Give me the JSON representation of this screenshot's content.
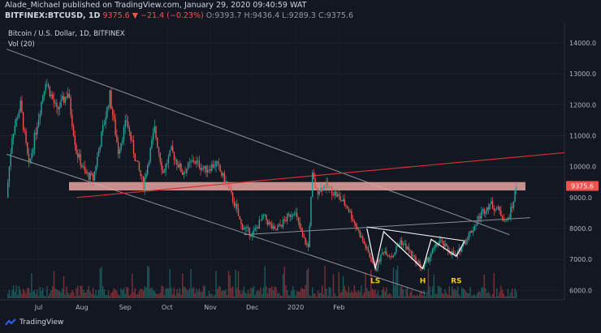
{
  "header": {
    "line1": "Alade_Michael published on TradingView.com, January 29, 2020 09:40:59 WAT",
    "symbol": "BITFINEX:BTCUSD, 1D",
    "change": "9375.6 ▼ −21.4 (−0.23%)",
    "ohlc_o": "O:9393.7",
    "ohlc_h": "H:9436.4",
    "ohlc_l": "L:9289.3",
    "ohlc_c": "C:9375.6"
  },
  "logo_text": "TradingView",
  "chart_data": {
    "type": "candlestick",
    "title": "Bitcoin / U.S. Dollar, 1D, BITFINEX",
    "volume_label": "Vol (20)",
    "ylim": [
      5800,
      14600
    ],
    "y_ticks": [
      6000,
      7000,
      8000,
      9000,
      10000,
      11000,
      12000,
      13000,
      14000
    ],
    "y_tick_labels": [
      "6000.0",
      "7000.0",
      "8000.0",
      "9000.0",
      "10000.0",
      "11000.0",
      "12000.0",
      "13000.0",
      "14000.0"
    ],
    "x_ticks": [
      "Jul",
      "Aug",
      "Sep",
      "Oct",
      "Nov",
      "Dec",
      "2020",
      "Feb"
    ],
    "last_price_label": "9375.6",
    "last_price": 9375.6,
    "colors": {
      "background": "#131722",
      "up": "#26a69a",
      "down": "#ef5350",
      "resistance_zone": "#e8a5a0",
      "red_trendline": "#d32f2f",
      "channel_lines": "#8a8e99",
      "pattern_lines": "#ffffff",
      "pattern_labels": "#f5c518"
    },
    "price_path": [
      [
        0,
        9000
      ],
      [
        4,
        11000
      ],
      [
        10,
        12000
      ],
      [
        16,
        10000
      ],
      [
        22,
        11400
      ],
      [
        28,
        12800
      ],
      [
        36,
        11800
      ],
      [
        44,
        12400
      ],
      [
        50,
        10500
      ],
      [
        56,
        9800
      ],
      [
        62,
        9600
      ],
      [
        68,
        11000
      ],
      [
        74,
        12300
      ],
      [
        80,
        10500
      ],
      [
        86,
        11500
      ],
      [
        92,
        10300
      ],
      [
        98,
        9400
      ],
      [
        106,
        11200
      ],
      [
        112,
        9800
      ],
      [
        118,
        10500
      ],
      [
        126,
        9800
      ],
      [
        134,
        10200
      ],
      [
        142,
        9900
      ],
      [
        150,
        10100
      ],
      [
        158,
        9400
      ],
      [
        164,
        8700
      ],
      [
        168,
        8100
      ],
      [
        176,
        7800
      ],
      [
        184,
        8400
      ],
      [
        192,
        7900
      ],
      [
        200,
        8300
      ],
      [
        206,
        8600
      ],
      [
        212,
        7700
      ],
      [
        216,
        7400
      ],
      [
        219,
        9700
      ],
      [
        222,
        9200
      ],
      [
        228,
        9400
      ],
      [
        236,
        9100
      ],
      [
        244,
        8700
      ],
      [
        250,
        8100
      ],
      [
        258,
        7300
      ],
      [
        264,
        6700
      ],
      [
        270,
        7300
      ],
      [
        276,
        7100
      ],
      [
        282,
        7600
      ],
      [
        288,
        7300
      ],
      [
        292,
        7000
      ],
      [
        298,
        6700
      ],
      [
        304,
        7200
      ],
      [
        310,
        7600
      ],
      [
        316,
        7300
      ],
      [
        322,
        7100
      ],
      [
        328,
        7600
      ],
      [
        334,
        8000
      ],
      [
        340,
        8500
      ],
      [
        346,
        8800
      ],
      [
        352,
        8600
      ],
      [
        358,
        8200
      ],
      [
        362,
        8700
      ],
      [
        365,
        9375.6
      ]
    ],
    "resistance_zone": [
      9230,
      9500
    ],
    "annotations": [
      "LS",
      "H",
      "RS"
    ],
    "grid": true
  }
}
